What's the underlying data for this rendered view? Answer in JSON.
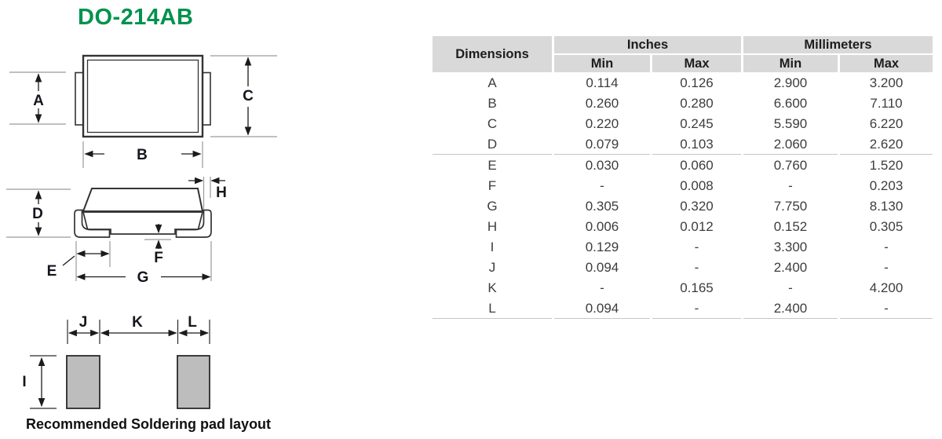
{
  "title": "DO-214AB",
  "colors": {
    "title_green": "#00924E",
    "header_gray": "#D9D9D9",
    "pad_gray": "#BDBDBD"
  },
  "diagram": {
    "labels": {
      "A": "A",
      "B": "B",
      "C": "C",
      "D": "D",
      "E": "E",
      "F": "F",
      "G": "G",
      "H": "H",
      "I": "I",
      "J": "J",
      "K": "K",
      "L": "L"
    },
    "caption": "Recommended Soldering pad layout"
  },
  "table": {
    "dimensions_header": "Dimensions",
    "inches_header": "Inches",
    "millimeters_header": "Millimeters",
    "min_header": "Min",
    "max_header": "Max",
    "rows": [
      {
        "dim": "A",
        "in_min": "0.114",
        "in_max": "0.126",
        "mm_min": "2.900",
        "mm_max": "3.200"
      },
      {
        "dim": "B",
        "in_min": "0.260",
        "in_max": "0.280",
        "mm_min": "6.600",
        "mm_max": "7.110"
      },
      {
        "dim": "C",
        "in_min": "0.220",
        "in_max": "0.245",
        "mm_min": "5.590",
        "mm_max": "6.220"
      },
      {
        "dim": "D",
        "in_min": "0.079",
        "in_max": "0.103",
        "mm_min": "2.060",
        "mm_max": "2.620"
      },
      {
        "dim": "E",
        "in_min": "0.030",
        "in_max": "0.060",
        "mm_min": "0.760",
        "mm_max": "1.520"
      },
      {
        "dim": "F",
        "in_min": "-",
        "in_max": "0.008",
        "mm_min": "-",
        "mm_max": "0.203"
      },
      {
        "dim": "G",
        "in_min": "0.305",
        "in_max": "0.320",
        "mm_min": "7.750",
        "mm_max": "8.130"
      },
      {
        "dim": "H",
        "in_min": "0.006",
        "in_max": "0.012",
        "mm_min": "0.152",
        "mm_max": "0.305"
      },
      {
        "dim": "I",
        "in_min": "0.129",
        "in_max": "-",
        "mm_min": "3.300",
        "mm_max": "-"
      },
      {
        "dim": "J",
        "in_min": "0.094",
        "in_max": "-",
        "mm_min": "2.400",
        "mm_max": "-"
      },
      {
        "dim": "K",
        "in_min": "-",
        "in_max": "0.165",
        "mm_min": "-",
        "mm_max": "4.200"
      },
      {
        "dim": "L",
        "in_min": "0.094",
        "in_max": "-",
        "mm_min": "2.400",
        "mm_max": "-"
      }
    ]
  }
}
